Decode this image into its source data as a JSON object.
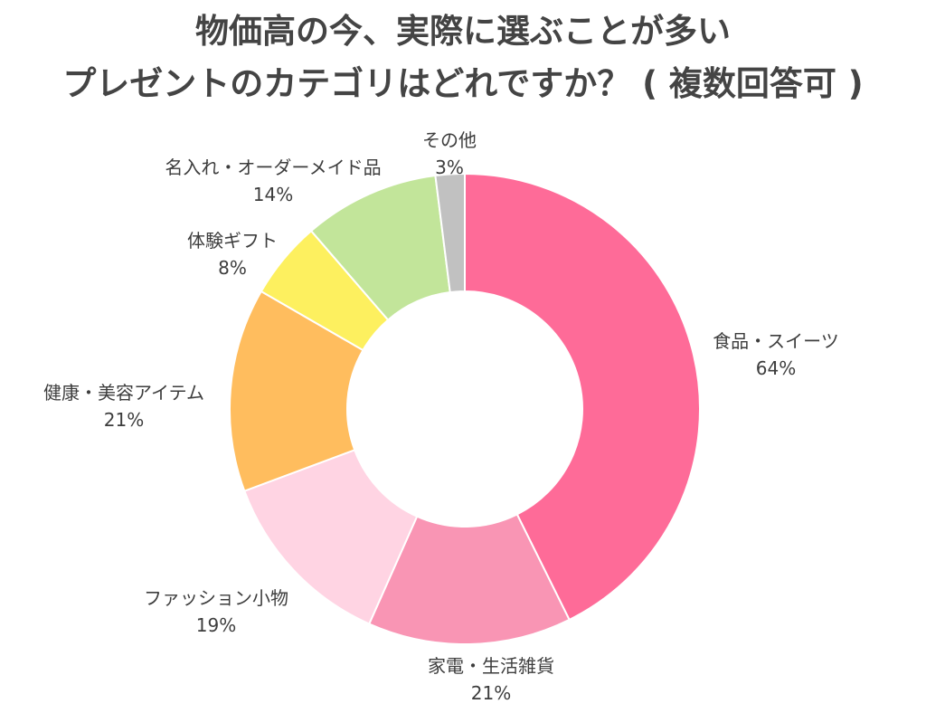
{
  "title": {
    "line1": "物価高の今、実際に選ぶことが多い",
    "line2": "プレゼントのカテゴリはどれですか？ ( 複数回答可 )"
  },
  "chart_data": {
    "type": "pie",
    "donut": true,
    "start": "top",
    "direction": "clockwise",
    "slices": [
      {
        "label": "食品・スイーツ",
        "percent_label": "64%",
        "value": 64,
        "color": "#fe6b98"
      },
      {
        "label": "家電・生活雑貨",
        "percent_label": "21%",
        "value": 21,
        "color": "#f995b4"
      },
      {
        "label": "ファッション小物",
        "percent_label": "19%",
        "value": 19,
        "color": "#ffd4e3"
      },
      {
        "label": "健康・美容アイテム",
        "percent_label": "21%",
        "value": 21,
        "color": "#ffbd5e"
      },
      {
        "label": "体験ギフト",
        "percent_label": "8%",
        "value": 8,
        "color": "#fdf05f"
      },
      {
        "label": "名入れ・オーダーメイド品",
        "percent_label": "14%",
        "value": 14,
        "color": "#c2e59a"
      },
      {
        "label": "その他",
        "percent_label": "3%",
        "value": 3,
        "color": "#c1c1c1"
      }
    ]
  }
}
